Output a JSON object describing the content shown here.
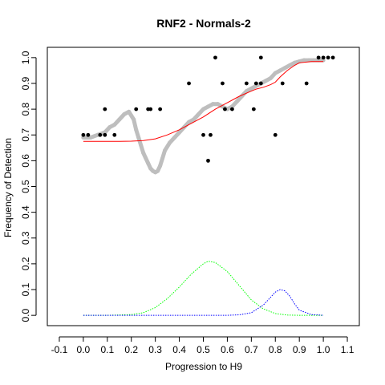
{
  "chart_data": {
    "type": "scatter",
    "title": "RNF2 - Normals-2",
    "xlabel": "Progression to H9",
    "ylabel": "Frequency of Detection",
    "xlim": [
      -0.15,
      1.15
    ],
    "ylim": [
      -0.04,
      1.04
    ],
    "x_ticks": [
      "-0.1",
      "0.0",
      "0.1",
      "0.2",
      "0.3",
      "0.4",
      "0.5",
      "0.6",
      "0.7",
      "0.8",
      "0.9",
      "1.0",
      "1.1"
    ],
    "y_ticks": [
      "0.0",
      "0.1",
      "0.2",
      "0.3",
      "0.4",
      "0.5",
      "0.6",
      "0.7",
      "0.8",
      "0.9",
      "1.0"
    ],
    "grid": false,
    "legend": "none",
    "colors": {
      "points": "#000000",
      "smoothed": "#bebebe",
      "fit_curve": "#ff0000",
      "density_1": "#00ff00",
      "density_2": "#0000ff"
    },
    "series": [
      {
        "kind": "points",
        "x": [
          0.0,
          0.02,
          0.07,
          0.09,
          0.09,
          0.13,
          0.22,
          0.27,
          0.28,
          0.32,
          0.44,
          0.5,
          0.52,
          0.53,
          0.55,
          0.58,
          0.59,
          0.62,
          0.68,
          0.71,
          0.72,
          0.74,
          0.74,
          0.8,
          0.83,
          0.93,
          0.98,
          1.0,
          1.02,
          1.04
        ],
        "y": [
          0.7,
          0.7,
          0.7,
          0.7,
          0.8,
          0.7,
          0.8,
          0.8,
          0.8,
          0.8,
          0.9,
          0.7,
          0.6,
          0.7,
          1.0,
          0.9,
          0.8,
          0.8,
          0.9,
          0.8,
          0.9,
          0.9,
          1.0,
          0.7,
          0.9,
          0.9,
          1.0,
          1.0,
          1.0,
          1.0
        ]
      },
      {
        "kind": "smoothed",
        "x": [
          0.0,
          0.03,
          0.06,
          0.09,
          0.11,
          0.13,
          0.15,
          0.17,
          0.19,
          0.21,
          0.22,
          0.23,
          0.24,
          0.25,
          0.26,
          0.27,
          0.28,
          0.29,
          0.3,
          0.31,
          0.32,
          0.33,
          0.34,
          0.36,
          0.38,
          0.4,
          0.42,
          0.44,
          0.46,
          0.48,
          0.5,
          0.52,
          0.54,
          0.56,
          0.58,
          0.6,
          0.62,
          0.64,
          0.66,
          0.68,
          0.7,
          0.72,
          0.74,
          0.76,
          0.78,
          0.8,
          0.82,
          0.84,
          0.86,
          0.88,
          0.9,
          0.92,
          0.94,
          0.96,
          0.98,
          1.0
        ],
        "y": [
          0.69,
          0.69,
          0.7,
          0.71,
          0.73,
          0.74,
          0.76,
          0.78,
          0.79,
          0.76,
          0.72,
          0.69,
          0.66,
          0.63,
          0.61,
          0.59,
          0.57,
          0.56,
          0.555,
          0.56,
          0.58,
          0.61,
          0.64,
          0.67,
          0.69,
          0.71,
          0.73,
          0.75,
          0.76,
          0.78,
          0.8,
          0.81,
          0.82,
          0.82,
          0.81,
          0.8,
          0.81,
          0.83,
          0.85,
          0.87,
          0.88,
          0.89,
          0.9,
          0.91,
          0.92,
          0.94,
          0.95,
          0.96,
          0.97,
          0.98,
          0.985,
          0.99,
          0.99,
          0.99,
          0.99,
          0.99
        ]
      },
      {
        "kind": "fit",
        "x": [
          0.0,
          0.05,
          0.1,
          0.15,
          0.2,
          0.25,
          0.3,
          0.35,
          0.4,
          0.45,
          0.5,
          0.55,
          0.6,
          0.65,
          0.7,
          0.72,
          0.75,
          0.78,
          0.8,
          0.82,
          0.85,
          0.88,
          0.9,
          0.95,
          1.0
        ],
        "y": [
          0.675,
          0.675,
          0.675,
          0.675,
          0.676,
          0.678,
          0.685,
          0.7,
          0.72,
          0.745,
          0.77,
          0.8,
          0.825,
          0.85,
          0.87,
          0.878,
          0.885,
          0.895,
          0.905,
          0.925,
          0.95,
          0.97,
          0.98,
          0.985,
          0.985
        ]
      },
      {
        "kind": "density",
        "x": [
          0.0,
          0.1,
          0.2,
          0.25,
          0.3,
          0.35,
          0.4,
          0.45,
          0.5,
          0.52,
          0.55,
          0.6,
          0.65,
          0.7,
          0.75,
          0.8,
          0.85,
          0.9,
          1.0
        ],
        "y": [
          0.0,
          0.0,
          0.003,
          0.01,
          0.03,
          0.065,
          0.11,
          0.16,
          0.2,
          0.21,
          0.205,
          0.17,
          0.115,
          0.06,
          0.025,
          0.007,
          0.001,
          0.0,
          0.0
        ]
      },
      {
        "kind": "density",
        "x": [
          0.0,
          0.5,
          0.6,
          0.65,
          0.7,
          0.75,
          0.78,
          0.8,
          0.82,
          0.84,
          0.86,
          0.88,
          0.9,
          0.95,
          1.0
        ],
        "y": [
          0.0,
          0.0,
          0.0,
          0.002,
          0.01,
          0.04,
          0.07,
          0.09,
          0.1,
          0.095,
          0.075,
          0.045,
          0.02,
          0.003,
          0.0
        ]
      }
    ]
  }
}
